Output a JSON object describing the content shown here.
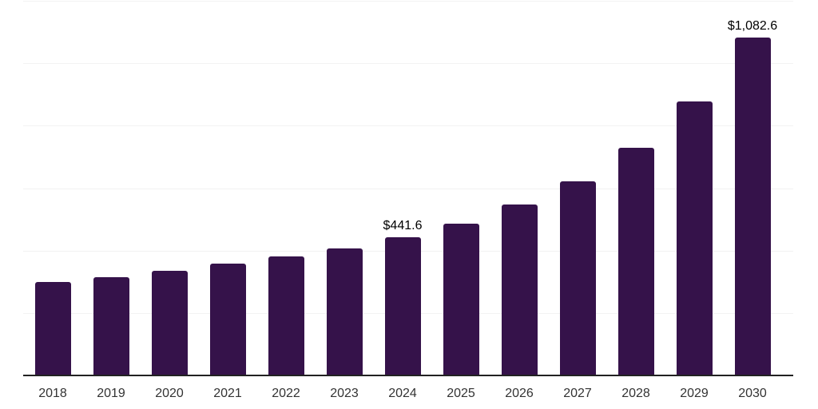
{
  "chart_data": {
    "type": "bar",
    "title": "",
    "xlabel": "",
    "ylabel": "",
    "categories": [
      "2018",
      "2019",
      "2020",
      "2021",
      "2022",
      "2023",
      "2024",
      "2025",
      "2026",
      "2027",
      "2028",
      "2029",
      "2030"
    ],
    "values": [
      300,
      315,
      334,
      358,
      380,
      408,
      441.6,
      487,
      548,
      623,
      730,
      878,
      1082.6
    ],
    "data_labels": [
      {
        "index": 6,
        "text": "$441.6"
      },
      {
        "index": 12,
        "text": "$1,082.6"
      }
    ],
    "ylim": [
      0,
      1200
    ],
    "gridline_step": 200,
    "grid": "horizontal",
    "legend": "none",
    "colors": {
      "bar": "#35124A",
      "axis": "#222222",
      "gridline": "#f2f2f2",
      "tick_label": "#333333",
      "value_label": "#000000",
      "background": "#ffffff"
    }
  }
}
